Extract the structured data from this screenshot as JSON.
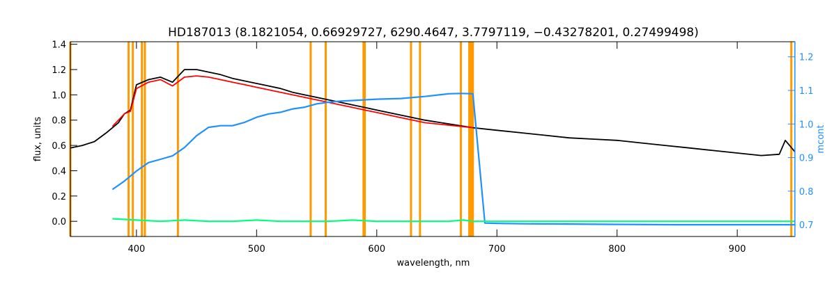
{
  "chart_data": {
    "type": "line",
    "title": "HD187013    (8.1821054, 0.66929727, 6290.4647, 3.7797119, −0.43278201, 0.27499498)",
    "xlabel": "wavelength, nm",
    "ylabel": "flux, units",
    "y2label": "mcont",
    "xlim": [
      345,
      948
    ],
    "ylim": [
      -0.12,
      1.42
    ],
    "y2lim": [
      0.665,
      1.245
    ],
    "x_ticks": [
      400,
      500,
      600,
      700,
      800,
      900
    ],
    "y_ticks": [
      0.0,
      0.2,
      0.4,
      0.6,
      0.8,
      1.0,
      1.2,
      1.4
    ],
    "y2_ticks": [
      0.7,
      0.8,
      0.9,
      1.0,
      1.1,
      1.2
    ],
    "x_tick_labels": [
      "400",
      "500",
      "600",
      "700",
      "800",
      "900"
    ],
    "y_tick_labels": [
      "0.0",
      "0.2",
      "0.4",
      "0.6",
      "0.8",
      "1.0",
      "1.2",
      "1.4"
    ],
    "y2_tick_labels": [
      "0.7",
      "0.8",
      "0.9",
      "1.0",
      "1.1",
      "1.2"
    ],
    "colors": {
      "observed": "#000000",
      "model": "#ff0000",
      "continuum": "#1e90ff",
      "residual": "#00ff7f",
      "mask": "#ff9900"
    },
    "masked_lines_nm": [
      345,
      393.5,
      397,
      404.5,
      407,
      434.5,
      545,
      557.5,
      589,
      590,
      628.5,
      636,
      670,
      677,
      678.5,
      680,
      945
    ],
    "series": [
      {
        "key": "observed",
        "axis": "left",
        "x": [
          345,
          355,
          365,
          375,
          385,
          390,
          395,
          400,
          410,
          420,
          430,
          440,
          450,
          460,
          470,
          480,
          490,
          500,
          510,
          520,
          530,
          540,
          550,
          560,
          570,
          580,
          590,
          600,
          620,
          640,
          660,
          680,
          700,
          720,
          740,
          760,
          780,
          800,
          820,
          840,
          860,
          880,
          900,
          920,
          935,
          940,
          948
        ],
        "y": [
          0.58,
          0.6,
          0.63,
          0.7,
          0.78,
          0.85,
          0.88,
          1.08,
          1.12,
          1.14,
          1.1,
          1.2,
          1.2,
          1.18,
          1.16,
          1.13,
          1.11,
          1.09,
          1.07,
          1.05,
          1.02,
          1.0,
          0.98,
          0.96,
          0.94,
          0.92,
          0.9,
          0.88,
          0.84,
          0.8,
          0.77,
          0.74,
          0.72,
          0.7,
          0.68,
          0.66,
          0.65,
          0.64,
          0.62,
          0.6,
          0.58,
          0.56,
          0.54,
          0.52,
          0.53,
          0.64,
          0.55
        ]
      },
      {
        "key": "model",
        "axis": "left",
        "x": [
          380,
          385,
          390,
          395,
          400,
          410,
          420,
          430,
          440,
          450,
          460,
          470,
          480,
          490,
          500,
          510,
          520,
          530,
          540,
          550,
          560,
          570,
          580,
          590,
          600,
          620,
          640,
          660,
          680
        ],
        "y": [
          0.75,
          0.8,
          0.85,
          0.87,
          1.05,
          1.1,
          1.12,
          1.07,
          1.14,
          1.15,
          1.14,
          1.12,
          1.1,
          1.08,
          1.06,
          1.04,
          1.02,
          1.0,
          0.98,
          0.96,
          0.94,
          0.92,
          0.9,
          0.88,
          0.86,
          0.82,
          0.78,
          0.76,
          0.74
        ]
      },
      {
        "key": "continuum",
        "axis": "right",
        "x": [
          380,
          390,
          400,
          410,
          420,
          430,
          440,
          450,
          460,
          470,
          480,
          490,
          500,
          510,
          520,
          530,
          540,
          550,
          560,
          570,
          580,
          590,
          600,
          620,
          640,
          660,
          670,
          680,
          690,
          700,
          720,
          760,
          800,
          850,
          900,
          948
        ],
        "y": [
          0.805,
          0.83,
          0.86,
          0.885,
          0.895,
          0.905,
          0.93,
          0.965,
          0.99,
          0.995,
          0.995,
          1.005,
          1.02,
          1.03,
          1.035,
          1.045,
          1.05,
          1.06,
          1.065,
          1.068,
          1.07,
          1.072,
          1.074,
          1.076,
          1.082,
          1.09,
          1.091,
          1.09,
          0.705,
          0.704,
          0.703,
          0.702,
          0.701,
          0.7,
          0.7,
          0.7
        ]
      },
      {
        "key": "residual",
        "axis": "left",
        "x": [
          380,
          400,
          420,
          440,
          460,
          480,
          500,
          520,
          540,
          560,
          580,
          600,
          620,
          640,
          660,
          672,
          680,
          720,
          800,
          900,
          948
        ],
        "y": [
          0.02,
          0.01,
          0.0,
          0.01,
          0.0,
          0.0,
          0.01,
          0.0,
          0.0,
          0.0,
          0.01,
          0.0,
          0.0,
          0.0,
          0.0,
          0.01,
          0.0,
          0.0,
          0.0,
          0.0,
          0.0
        ]
      }
    ]
  }
}
